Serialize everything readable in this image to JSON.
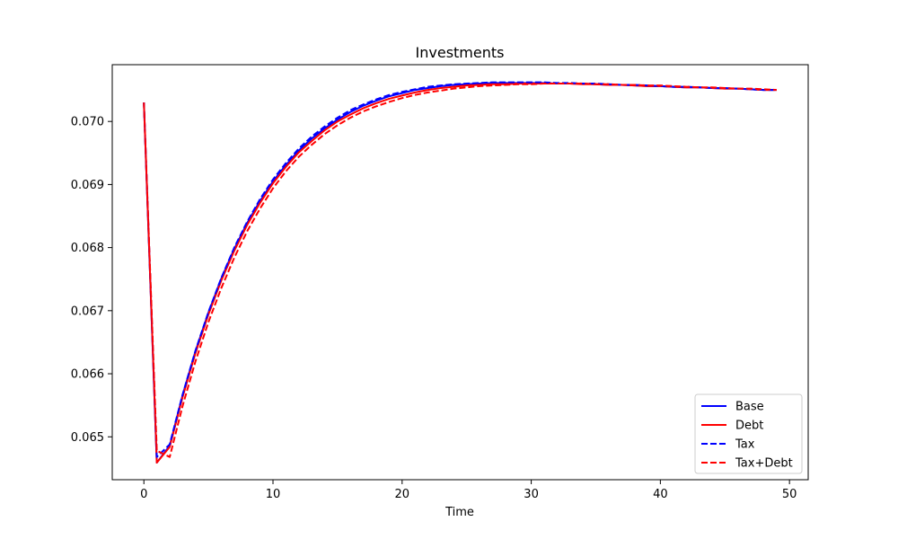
{
  "chart_data": {
    "type": "line",
    "title": "Investments",
    "xlabel": "Time",
    "ylabel": "",
    "xlim": [
      -2.45,
      51.45
    ],
    "ylim": [
      0.06432,
      0.0709
    ],
    "xticks": [
      0,
      10,
      20,
      30,
      40,
      50
    ],
    "xtick_labels": [
      "0",
      "10",
      "20",
      "30",
      "40",
      "50"
    ],
    "yticks": [
      0.065,
      0.066,
      0.067,
      0.068,
      0.069,
      0.07
    ],
    "ytick_labels": [
      "0.065",
      "0.066",
      "0.067",
      "0.068",
      "0.069",
      "0.070"
    ],
    "grid": false,
    "legend_position": "lower-right",
    "series": [
      {
        "name": "Base",
        "color": "#0000ff",
        "dash": "solid",
        "x": [
          0,
          1,
          2,
          3,
          4,
          5,
          6,
          7,
          8,
          9,
          10,
          11,
          12,
          13,
          14,
          15,
          16,
          17,
          18,
          19,
          20,
          21,
          22,
          23,
          24,
          25,
          26,
          27,
          28,
          29,
          30,
          31,
          32,
          33,
          34,
          35,
          36,
          37,
          38,
          39,
          40,
          41,
          42,
          43,
          44,
          45,
          46,
          47,
          48,
          49
        ],
        "y": [
          0.0703,
          0.06459,
          0.06486,
          0.06566,
          0.06636,
          0.06697,
          0.06751,
          0.06798,
          0.06839,
          0.06874,
          0.06905,
          0.06931,
          0.06954,
          0.06973,
          0.06989,
          0.07003,
          0.07015,
          0.07025,
          0.07033,
          0.0704,
          0.07045,
          0.0705,
          0.07053,
          0.07056,
          0.07058,
          0.07059,
          0.0706,
          0.07061,
          0.07061,
          0.07061,
          0.07061,
          0.07061,
          0.0706,
          0.0706,
          0.0706,
          0.07059,
          0.07058,
          0.07058,
          0.07057,
          0.07056,
          0.07056,
          0.07055,
          0.07054,
          0.07054,
          0.07053,
          0.07052,
          0.07052,
          0.07051,
          0.0705,
          0.0705
        ]
      },
      {
        "name": "Debt",
        "color": "#ff0000",
        "dash": "solid",
        "x": [
          0,
          1,
          2,
          3,
          4,
          5,
          6,
          7,
          8,
          9,
          10,
          11,
          12,
          13,
          14,
          15,
          16,
          17,
          18,
          19,
          20,
          21,
          22,
          23,
          24,
          25,
          26,
          27,
          28,
          29,
          30,
          31,
          32,
          33,
          34,
          35,
          36,
          37,
          38,
          39,
          40,
          41,
          42,
          43,
          44,
          45,
          46,
          47,
          48,
          49
        ],
        "y": [
          0.0703,
          0.06459,
          0.06484,
          0.06563,
          0.06633,
          0.06694,
          0.06748,
          0.06795,
          0.06836,
          0.06871,
          0.06902,
          0.06928,
          0.06951,
          0.06969,
          0.06986,
          0.07,
          0.07011,
          0.07021,
          0.07029,
          0.07036,
          0.07041,
          0.07046,
          0.0705,
          0.07053,
          0.07055,
          0.07057,
          0.07058,
          0.07059,
          0.07059,
          0.0706,
          0.0706,
          0.0706,
          0.0706,
          0.0706,
          0.07059,
          0.07059,
          0.07058,
          0.07058,
          0.07057,
          0.07056,
          0.07056,
          0.07055,
          0.07054,
          0.07054,
          0.07053,
          0.07052,
          0.07052,
          0.07051,
          0.0705,
          0.0705
        ]
      },
      {
        "name": "Tax",
        "color": "#0000ff",
        "dash": "dashed",
        "x": [
          0,
          1,
          2,
          3,
          4,
          5,
          6,
          7,
          8,
          9,
          10,
          11,
          12,
          13,
          14,
          15,
          16,
          17,
          18,
          19,
          20,
          21,
          22,
          23,
          24,
          25,
          26,
          27,
          28,
          29,
          30,
          31,
          32,
          33,
          34,
          35,
          36,
          37,
          38,
          39,
          40,
          41,
          42,
          43,
          44,
          45,
          46,
          47,
          48,
          49
        ],
        "y": [
          0.0703,
          0.06468,
          0.06488,
          0.06567,
          0.06637,
          0.06698,
          0.06752,
          0.068,
          0.06841,
          0.06877,
          0.06908,
          0.06934,
          0.06957,
          0.06976,
          0.06992,
          0.07006,
          0.07018,
          0.07027,
          0.07035,
          0.07042,
          0.07047,
          0.07051,
          0.07055,
          0.07057,
          0.07059,
          0.0706,
          0.07061,
          0.07062,
          0.07062,
          0.07062,
          0.07062,
          0.07062,
          0.07061,
          0.07061,
          0.0706,
          0.0706,
          0.07059,
          0.07058,
          0.07058,
          0.07057,
          0.07056,
          0.07055,
          0.07055,
          0.07054,
          0.07053,
          0.07053,
          0.07052,
          0.07051,
          0.0705,
          0.0705
        ]
      },
      {
        "name": "Tax+Debt",
        "color": "#ff0000",
        "dash": "dashed",
        "x": [
          0,
          1,
          2,
          3,
          4,
          5,
          6,
          7,
          8,
          9,
          10,
          11,
          12,
          13,
          14,
          15,
          16,
          17,
          18,
          19,
          20,
          21,
          22,
          23,
          24,
          25,
          26,
          27,
          28,
          29,
          30,
          31,
          32,
          33,
          34,
          35,
          36,
          37,
          38,
          39,
          40,
          41,
          42,
          43,
          44,
          45,
          46,
          47,
          48,
          49
        ],
        "y": [
          0.0703,
          0.06478,
          0.06468,
          0.06549,
          0.0662,
          0.06682,
          0.06736,
          0.06784,
          0.06826,
          0.06862,
          0.06894,
          0.06921,
          0.06944,
          0.06963,
          0.0698,
          0.06994,
          0.07006,
          0.07016,
          0.07024,
          0.07031,
          0.07037,
          0.07042,
          0.07046,
          0.07049,
          0.07052,
          0.07054,
          0.07056,
          0.07057,
          0.07058,
          0.07059,
          0.07059,
          0.0706,
          0.0706,
          0.0706,
          0.0706,
          0.07059,
          0.07059,
          0.07058,
          0.07058,
          0.07057,
          0.07057,
          0.07056,
          0.07055,
          0.07054,
          0.07054,
          0.07053,
          0.07052,
          0.07052,
          0.07051,
          0.0705
        ]
      }
    ]
  }
}
